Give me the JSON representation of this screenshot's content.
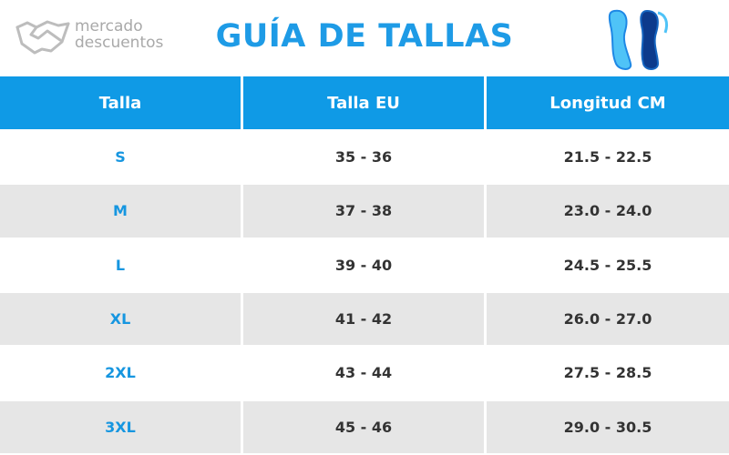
{
  "header": {
    "logo": [
      "mercado",
      "descuentos"
    ],
    "title": "GUÍA DE TALLAS"
  },
  "table": {
    "columns": [
      "Talla",
      "Talla EU",
      "Longitud CM"
    ],
    "rows": [
      [
        "S",
        "35 - 36",
        "21.5 - 22.5"
      ],
      [
        "M",
        "37 - 38",
        "23.0 - 24.0"
      ],
      [
        "L",
        "39 - 40",
        "24.5 - 25.5"
      ],
      [
        "XL",
        "41 - 42",
        "26.0 - 27.0"
      ],
      [
        "2XL",
        "43 - 44",
        "27.5 - 28.5"
      ],
      [
        "3XL",
        "45 - 46",
        "29.0 - 30.5"
      ]
    ]
  }
}
